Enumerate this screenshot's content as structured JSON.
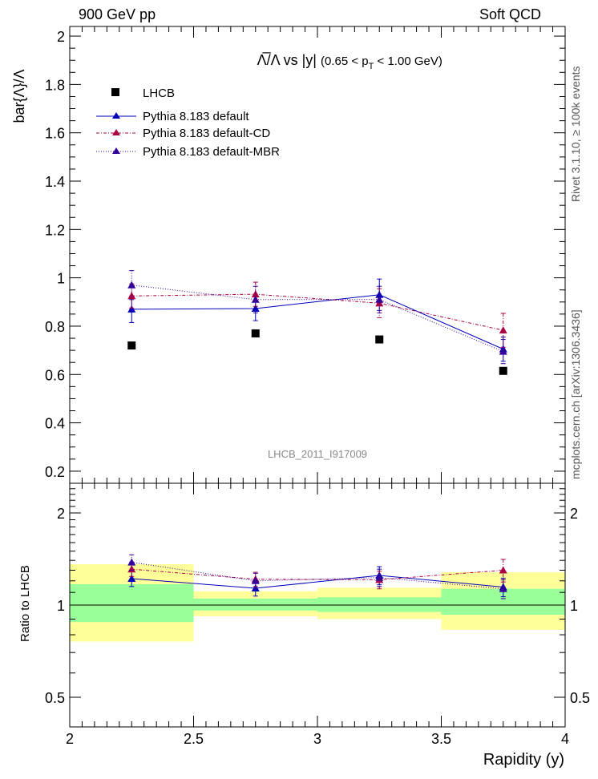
{
  "header": {
    "left": "900 GeV pp",
    "right": "Soft QCD"
  },
  "side_labels": {
    "rivet": "Rivet 3.1.10, ≥ 100k events",
    "mcplots": "mcplots.cern.ch [arXiv:1306.3436]"
  },
  "chart_data": [
    {
      "type": "scatter",
      "title": "Λ̅/Λ vs |y| (0.65 < pT < 1.00 GeV)",
      "title_parts": {
        "main": "Λ̅/Λ vs |y|",
        "range_prefix": "(0.65 < p",
        "range_sub": "T",
        "range_suffix": " < 1.00 GeV)"
      },
      "watermark": "LHCB_2011_I917009",
      "ylabel": "bar{Λ}/Λ",
      "xlabel": "",
      "xlim": [
        2.0,
        4.0
      ],
      "ylim": [
        0.15,
        2.04
      ],
      "yticks": [
        "0.2",
        "0.4",
        "0.6",
        "0.8",
        "1",
        "1.2",
        "1.4",
        "1.6",
        "1.8",
        "2"
      ],
      "legend_position": "top-left",
      "x": [
        2.25,
        2.75,
        3.25,
        3.75
      ],
      "series": [
        {
          "name": "LHCB",
          "color": "#000000",
          "marker": "square",
          "line": "none",
          "values": [
            0.72,
            0.77,
            0.745,
            0.615
          ],
          "errors": [
            0.0,
            0.0,
            0.0,
            0.0
          ]
        },
        {
          "name": "Pythia 8.183 default",
          "color": "#0000bb",
          "marker": "triangle",
          "line": "solid",
          "values": [
            0.87,
            0.873,
            0.93,
            0.705
          ],
          "errors": [
            0.055,
            0.05,
            0.065,
            0.05
          ]
        },
        {
          "name": "Pythia 8.183 default-CD",
          "color": "#aa0044",
          "marker": "triangle",
          "line": "dashdot",
          "values": [
            0.925,
            0.932,
            0.895,
            0.783
          ],
          "errors": [
            0.05,
            0.05,
            0.06,
            0.07
          ]
        },
        {
          "name": "Pythia 8.183 default-MBR",
          "color": "#330099",
          "marker": "triangle",
          "line": "dotted",
          "values": [
            0.97,
            0.91,
            0.91,
            0.695
          ],
          "errors": [
            0.06,
            0.055,
            0.055,
            0.05
          ]
        }
      ]
    },
    {
      "type": "line",
      "title": "",
      "ylabel": "Ratio to LHCB",
      "xlabel": "Rapidity (y)",
      "xlim": [
        2.0,
        4.0
      ],
      "ylim": [
        0.4,
        2.5
      ],
      "yscale": "log",
      "yticks": [
        "0.5",
        "1",
        "2"
      ],
      "xticks": [
        "2",
        "2.5",
        "3",
        "3.5",
        "4"
      ],
      "x": [
        2.25,
        2.75,
        3.25,
        3.75
      ],
      "bands": {
        "bins": [
          [
            2.0,
            2.5
          ],
          [
            2.5,
            3.0
          ],
          [
            3.0,
            3.5
          ],
          [
            3.5,
            4.0
          ]
        ],
        "yellow": {
          "color": "#ffff99",
          "low": [
            0.76,
            0.92,
            0.9,
            0.83
          ],
          "high": [
            1.36,
            1.11,
            1.14,
            1.28
          ]
        },
        "green": {
          "color": "#99ff99",
          "low": [
            0.88,
            0.96,
            0.95,
            0.93
          ],
          "high": [
            1.17,
            1.05,
            1.06,
            1.13
          ]
        }
      },
      "series": [
        {
          "name": "Pythia 8.183 default",
          "color": "#0000bb",
          "marker": "triangle",
          "line": "solid",
          "values": [
            1.22,
            1.135,
            1.25,
            1.145
          ],
          "errors": [
            0.07,
            0.065,
            0.085,
            0.08
          ]
        },
        {
          "name": "Pythia 8.183 default-CD",
          "color": "#aa0044",
          "marker": "triangle",
          "line": "dashdot",
          "values": [
            1.31,
            1.215,
            1.21,
            1.3
          ],
          "errors": [
            0.07,
            0.065,
            0.08,
            0.11
          ]
        },
        {
          "name": "Pythia 8.183 default-MBR",
          "color": "#330099",
          "marker": "triangle",
          "line": "dotted",
          "values": [
            1.38,
            1.2,
            1.23,
            1.13
          ],
          "errors": [
            0.08,
            0.07,
            0.08,
            0.08
          ]
        }
      ]
    }
  ]
}
